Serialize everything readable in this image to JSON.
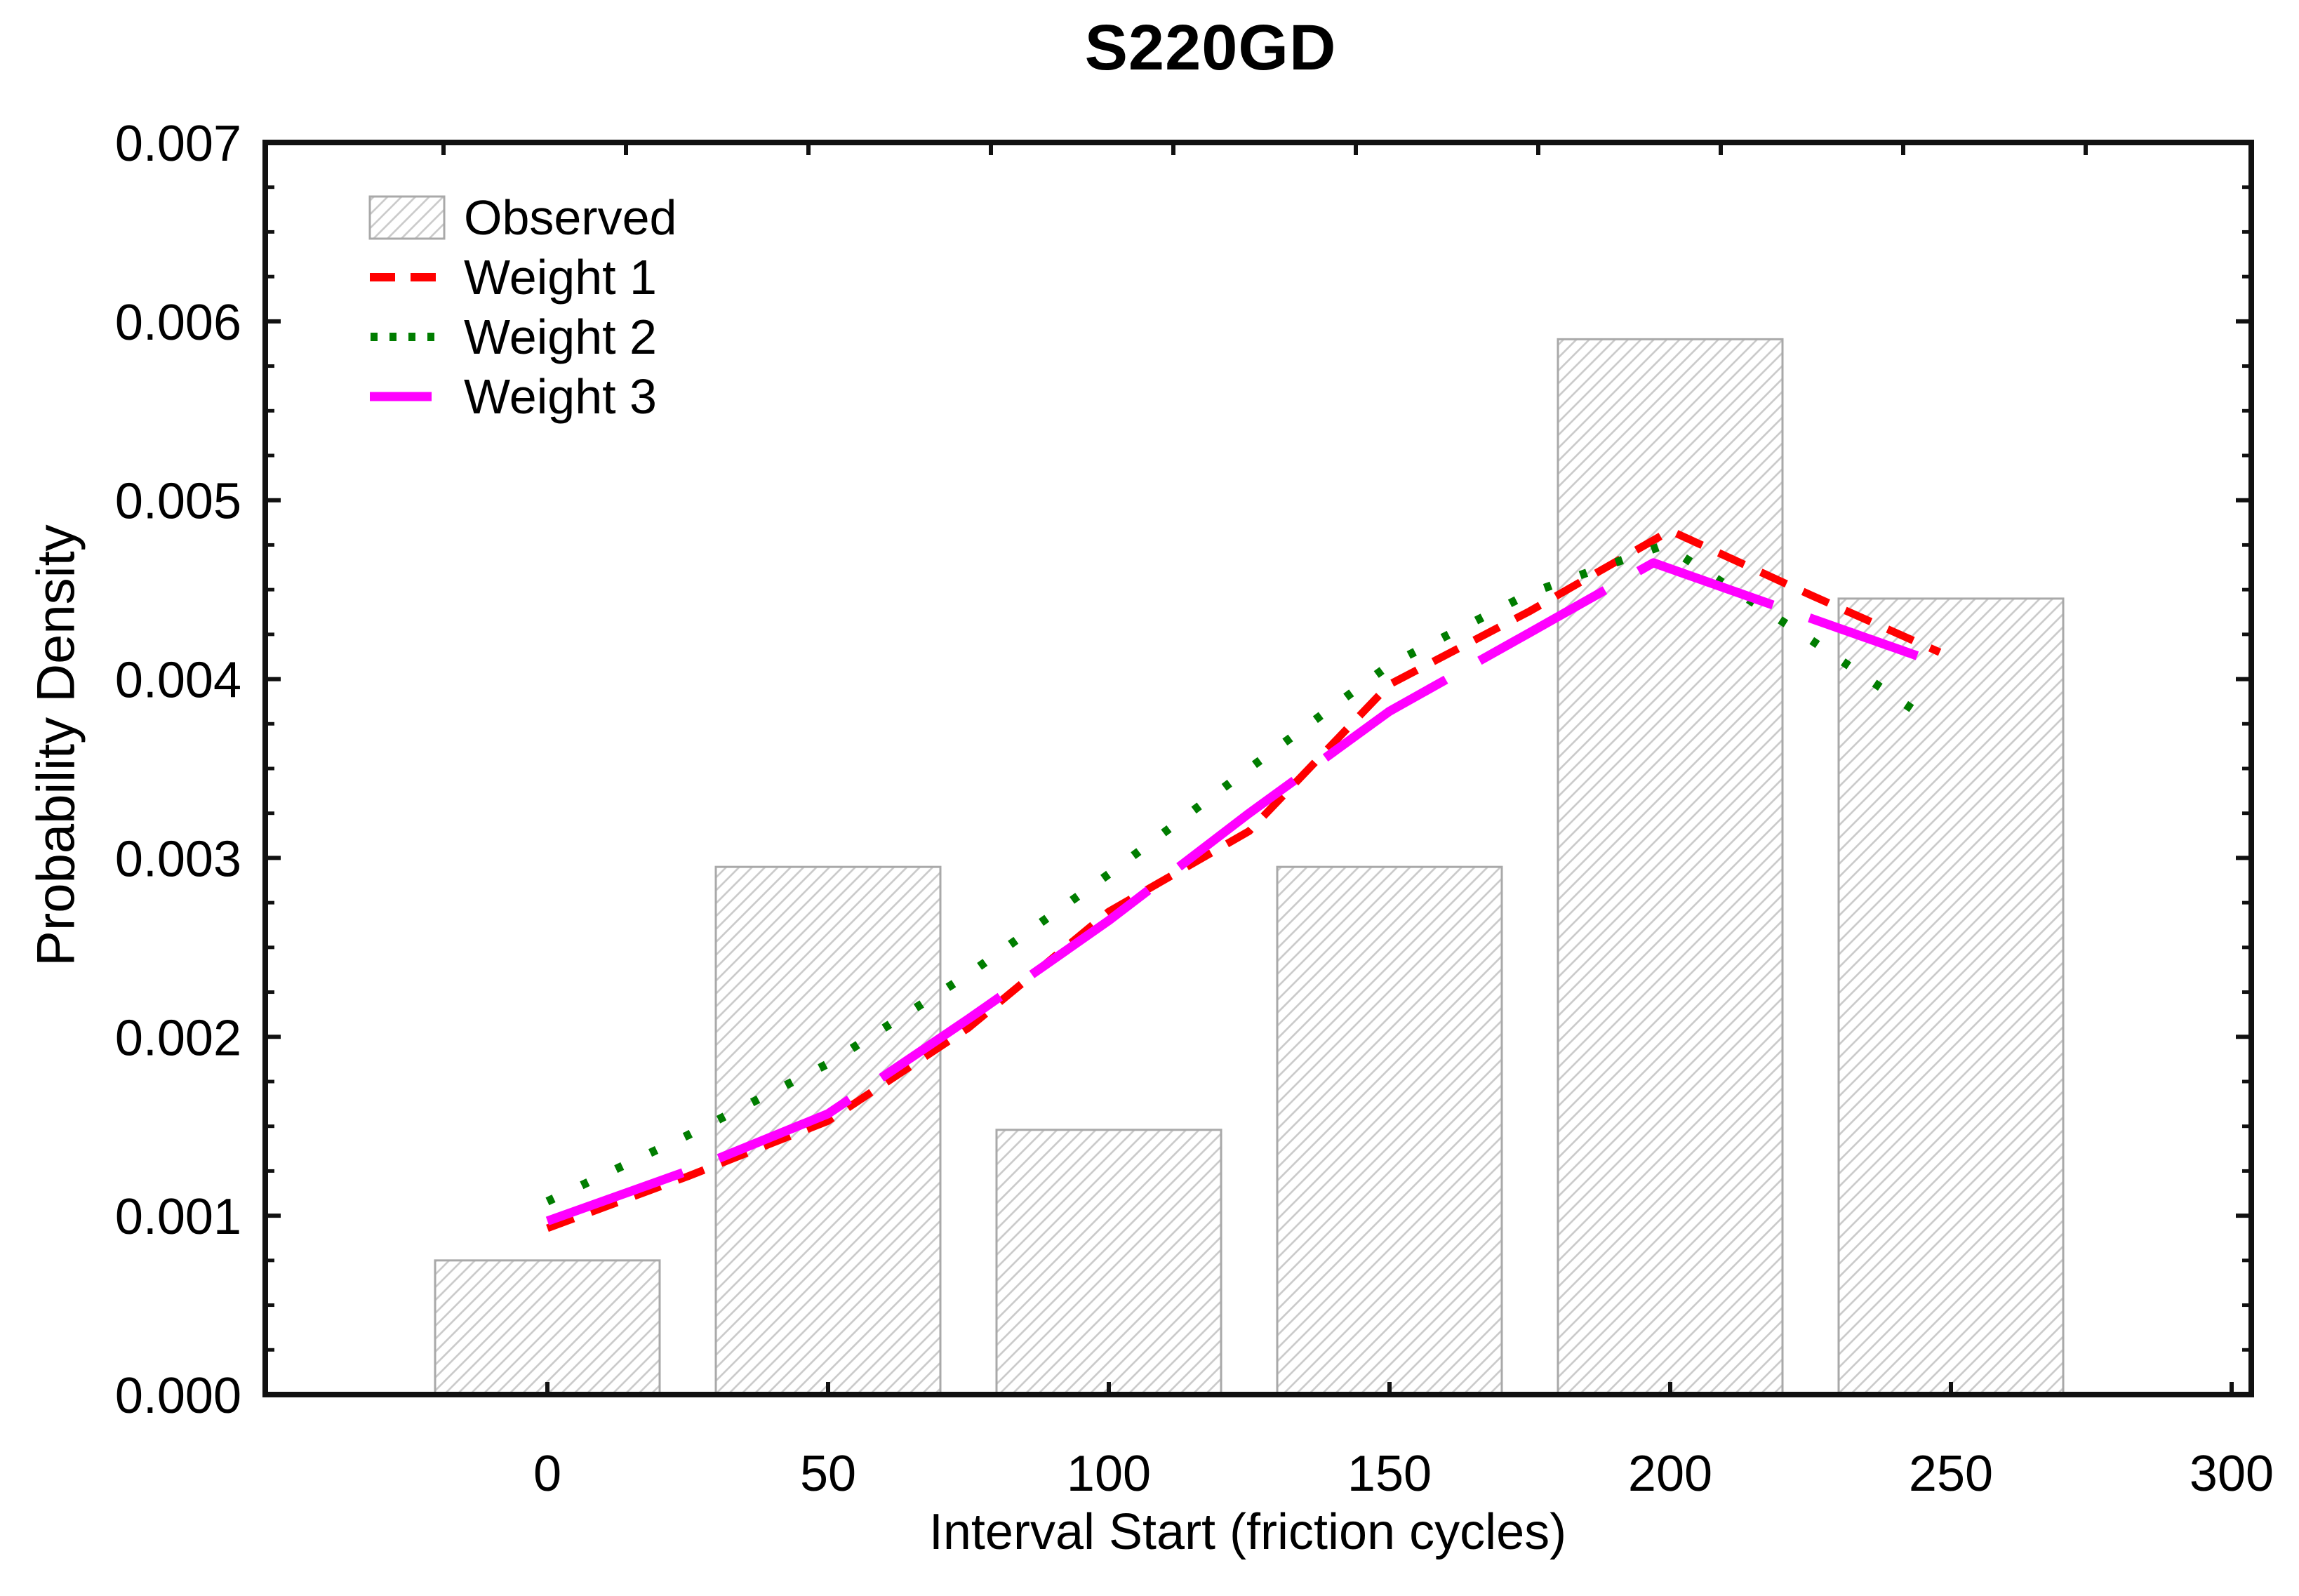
{
  "title": "S220GD",
  "axes": {
    "x": {
      "label": "Interval Start (friction cycles)",
      "ticks": [
        0,
        50,
        100,
        150,
        200,
        250,
        300
      ],
      "tick_labels": [
        "0",
        "50",
        "100",
        "150",
        "200",
        "250",
        "300"
      ],
      "top_ticks": [
        -18.5,
        14,
        46.5,
        79,
        111.5,
        144,
        176.5,
        209,
        241.5,
        274
      ]
    },
    "y": {
      "label": "Probability Density",
      "ticks": [
        0,
        0.001,
        0.002,
        0.003,
        0.004,
        0.005,
        0.006,
        0.007
      ],
      "tick_labels": [
        "0.000",
        "0.001",
        "0.002",
        "0.003",
        "0.004",
        "0.005",
        "0.006",
        "0.007"
      ],
      "minor_step": 0.00025
    }
  },
  "legend": {
    "items": [
      {
        "label": "Observed",
        "type": "hatch"
      },
      {
        "label": "Weight 1",
        "type": "dashed",
        "color": "#ff0000"
      },
      {
        "label": "Weight 2",
        "type": "dotted",
        "color": "#007d00"
      },
      {
        "label": "Weight 3",
        "type": "longdash",
        "color": "#ff00ff"
      }
    ]
  },
  "colors": {
    "weight1": "#ff0000",
    "weight2": "#007d00",
    "weight3": "#ff00ff",
    "bar_border": "#a9a9a9",
    "bar_hatch": "#c9c9c9",
    "axis": "#111111"
  },
  "chart_data": {
    "type": "bar",
    "title": "S220GD",
    "xlabel": "Interval Start (friction cycles)",
    "ylabel": "Probability Density",
    "xlim": [
      -50.25,
      303.5
    ],
    "ylim": [
      0,
      0.007
    ],
    "grid": false,
    "legend_position": "upper-left-inside",
    "bars": {
      "name": "Observed",
      "centers": [
        0,
        50,
        100,
        150,
        200,
        250
      ],
      "width": 40,
      "heights": [
        0.00075,
        0.00295,
        0.00148,
        0.00295,
        0.0059,
        0.00445
      ]
    },
    "series": [
      {
        "name": "Weight 1",
        "style": "dashed",
        "color": "#ff0000",
        "points": [
          [
            0,
            0.00093
          ],
          [
            25,
            0.00122
          ],
          [
            50,
            0.00153
          ],
          [
            75,
            0.00205
          ],
          [
            100,
            0.0027
          ],
          [
            125,
            0.00315
          ],
          [
            150,
            0.00397
          ],
          [
            175,
            0.00438
          ],
          [
            200,
            0.00483
          ],
          [
            225,
            0.00447
          ],
          [
            248,
            0.00415
          ]
        ]
      },
      {
        "name": "Weight 2",
        "style": "dotted",
        "color": "#007d00",
        "points": [
          [
            0,
            0.00108
          ],
          [
            25,
            0.00145
          ],
          [
            50,
            0.00185
          ],
          [
            75,
            0.00235
          ],
          [
            100,
            0.00291
          ],
          [
            125,
            0.0035
          ],
          [
            150,
            0.00408
          ],
          [
            175,
            0.00448
          ],
          [
            199,
            0.00475
          ],
          [
            225,
            0.00422
          ],
          [
            247,
            0.00375
          ]
        ]
      },
      {
        "name": "Weight 3",
        "style": "longdash",
        "color": "#ff00ff",
        "points": [
          [
            0,
            0.00097
          ],
          [
            25,
            0.00125
          ],
          [
            50,
            0.00157
          ],
          [
            75,
            0.0021
          ],
          [
            100,
            0.00265
          ],
          [
            125,
            0.00325
          ],
          [
            150,
            0.00382
          ],
          [
            175,
            0.00426
          ],
          [
            197,
            0.00465
          ],
          [
            225,
            0.00434
          ],
          [
            244,
            0.00413
          ]
        ]
      }
    ]
  }
}
